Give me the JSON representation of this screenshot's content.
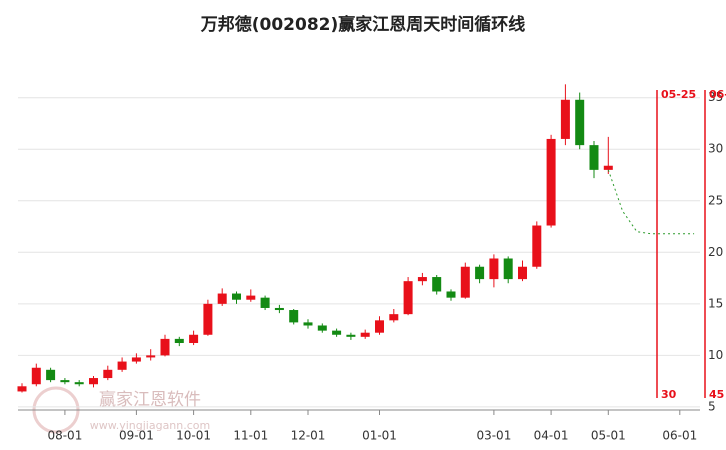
{
  "chart_data": {
    "type": "candlestick",
    "title": "万邦德(002082)赢家江恩周天时间循环线",
    "categories": [
      null,
      null,
      null,
      "08-01",
      null,
      null,
      null,
      null,
      "09-01",
      null,
      null,
      null,
      "10-01",
      null,
      null,
      null,
      "11-01",
      null,
      null,
      null,
      "12-01",
      null,
      null,
      null,
      null,
      "01-01",
      null,
      null,
      null,
      null,
      null,
      null,
      null,
      "03-01",
      null,
      null,
      null,
      "04-01",
      null,
      null,
      null,
      "05-01",
      null,
      null,
      null,
      null,
      "06-01",
      null
    ],
    "open": [
      6.5,
      7.2,
      8.6,
      7.6,
      7.4,
      7.2,
      7.8,
      8.6,
      9.4,
      9.8,
      10.0,
      11.6,
      11.2,
      12.0,
      15.0,
      16.0,
      15.4,
      15.6,
      14.6,
      14.4,
      13.2,
      12.9,
      12.4,
      12.0,
      11.8,
      12.2,
      13.4,
      14.0,
      17.2,
      17.6,
      16.2,
      15.6,
      18.6,
      17.4,
      19.4,
      17.4,
      18.6,
      22.6,
      31.0,
      34.8,
      30.4,
      28.0,
      null,
      null,
      null,
      null,
      null,
      null
    ],
    "close": [
      7.0,
      8.8,
      7.6,
      7.4,
      7.2,
      7.8,
      8.6,
      9.4,
      9.8,
      10.0,
      11.6,
      11.2,
      12.0,
      15.0,
      16.0,
      15.4,
      15.8,
      14.6,
      14.4,
      13.2,
      12.9,
      12.4,
      12.0,
      11.8,
      12.2,
      13.4,
      14.0,
      17.2,
      17.6,
      16.2,
      15.6,
      18.6,
      17.4,
      19.4,
      17.4,
      18.6,
      22.6,
      31.0,
      34.8,
      30.4,
      28.0,
      28.4,
      null,
      null,
      null,
      null,
      null,
      null
    ],
    "high": [
      7.3,
      9.2,
      8.8,
      7.8,
      7.6,
      8.0,
      9.0,
      9.8,
      10.2,
      10.6,
      12.0,
      11.8,
      12.4,
      15.4,
      16.5,
      16.2,
      16.4,
      15.8,
      14.9,
      14.5,
      13.5,
      13.1,
      12.6,
      12.2,
      12.5,
      13.8,
      14.5,
      17.6,
      18.0,
      17.8,
      16.4,
      19.0,
      18.8,
      19.8,
      19.6,
      19.2,
      23.0,
      31.4,
      36.3,
      35.5,
      30.8,
      31.2,
      null,
      null,
      null,
      null,
      null,
      null
    ],
    "low": [
      6.4,
      7.0,
      7.4,
      7.2,
      7.0,
      6.9,
      7.6,
      8.4,
      9.2,
      9.5,
      9.9,
      10.9,
      11.0,
      11.9,
      14.8,
      15.0,
      15.2,
      14.4,
      14.1,
      13.0,
      12.6,
      12.2,
      11.8,
      11.5,
      11.6,
      12.0,
      13.2,
      13.9,
      16.8,
      15.9,
      15.3,
      15.5,
      17.0,
      16.6,
      17.0,
      17.2,
      18.4,
      22.4,
      30.4,
      30.0,
      27.2,
      27.6,
      null,
      null,
      null,
      null,
      null,
      null
    ],
    "projection": [
      null,
      null,
      null,
      null,
      null,
      null,
      null,
      null,
      null,
      null,
      null,
      null,
      null,
      null,
      null,
      null,
      null,
      null,
      null,
      null,
      null,
      null,
      null,
      null,
      null,
      null,
      null,
      null,
      null,
      null,
      null,
      null,
      null,
      null,
      null,
      null,
      null,
      null,
      null,
      null,
      null,
      28.0,
      24.0,
      22.0,
      21.8,
      21.8,
      21.8,
      21.8
    ],
    "up_color": "#e8101a",
    "down_color": "#138a13",
    "projection_color": "#2a9a2a",
    "ylim": [
      4.7,
      40.6
    ],
    "yticks": [
      5,
      10,
      15,
      20,
      25,
      30,
      35
    ],
    "grid": true,
    "cycle_lines": [
      {
        "date": "05-25",
        "days": "30"
      },
      {
        "date": "06-",
        "days": "45"
      }
    ],
    "watermark": "赢家江恩软件",
    "watermark_url": "www.yingjiagann.com"
  }
}
